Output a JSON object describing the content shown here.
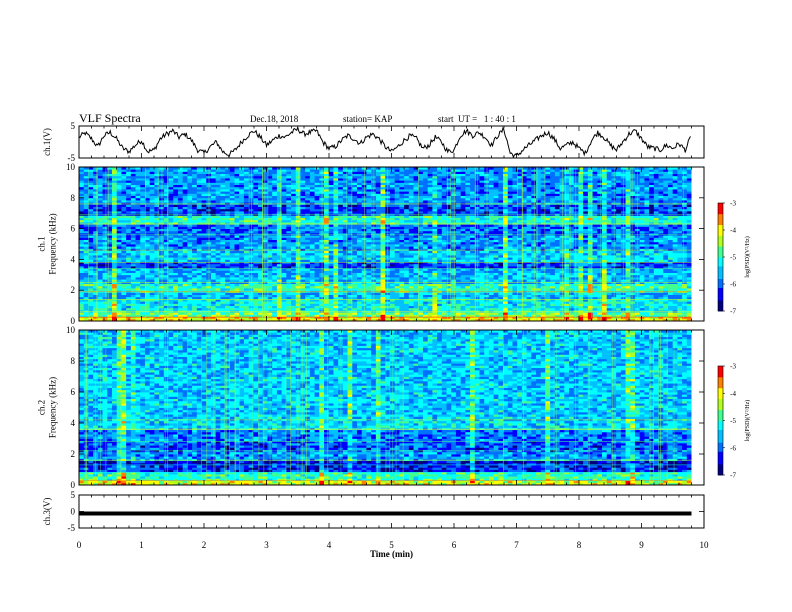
{
  "header": {
    "title": "VLF Spectra",
    "date": "Dec.18, 2018",
    "station": "station= KAP",
    "start": "start  UT =   1 : 40 : 1"
  },
  "chart_data": [
    {
      "type": "line",
      "panel": "ch1-waveform",
      "ylabel": "ch.1(V)",
      "ylim": [
        -5,
        5
      ],
      "yticks": [
        "5",
        "-5"
      ],
      "xlim": [
        0,
        10
      ],
      "samples_x_min": [
        0.0,
        0.1,
        0.2,
        0.3,
        0.4,
        0.5,
        0.6,
        0.7,
        0.8,
        0.9,
        1.0,
        1.1,
        1.2,
        1.3,
        1.4,
        1.5,
        1.6,
        1.7,
        1.8,
        1.9,
        2.0,
        2.1,
        2.2,
        2.3,
        2.4,
        2.5,
        2.6,
        2.7,
        2.8,
        2.9,
        3.0,
        3.1,
        3.2,
        3.3,
        3.4,
        3.5,
        3.6,
        3.7,
        3.8,
        3.9,
        4.0,
        4.1,
        4.2,
        4.3,
        4.4,
        4.5,
        4.6,
        4.7,
        4.8,
        4.9,
        5.0,
        5.1,
        5.2,
        5.3,
        5.4,
        5.5,
        5.6,
        5.7,
        5.8,
        5.9,
        6.0,
        6.1,
        6.2,
        6.3,
        6.4,
        6.5,
        6.6,
        6.7,
        6.8,
        6.9,
        7.0,
        7.1,
        7.2,
        7.3,
        7.4,
        7.5,
        7.6,
        7.7,
        7.8,
        7.9,
        8.0,
        8.1,
        8.2,
        8.3,
        8.4,
        8.5,
        8.6,
        8.7,
        8.8,
        8.9,
        9.0,
        9.1,
        9.2,
        9.3,
        9.4,
        9.5,
        9.6,
        9.7,
        9.8
      ],
      "values_v": [
        1.5,
        2.8,
        1.0,
        -1.5,
        2.0,
        3.0,
        1.0,
        -2.0,
        -3.0,
        -1.0,
        0.5,
        -3.0,
        -2.5,
        1.0,
        2.5,
        3.5,
        1.5,
        2.5,
        0.5,
        -2.5,
        -3.5,
        -1.5,
        0.0,
        -3.0,
        -4.0,
        -2.5,
        0.0,
        2.0,
        3.5,
        1.5,
        -1.0,
        0.5,
        2.0,
        1.5,
        3.0,
        4.0,
        2.5,
        3.0,
        3.5,
        0.0,
        -2.0,
        -1.5,
        0.5,
        2.0,
        1.0,
        -0.5,
        1.5,
        2.5,
        1.0,
        -1.5,
        -3.0,
        -1.5,
        0.5,
        2.0,
        1.0,
        -2.0,
        -1.0,
        1.5,
        0.0,
        -3.0,
        -2.5,
        2.0,
        3.5,
        2.0,
        3.0,
        1.5,
        -1.0,
        2.0,
        4.0,
        -3.5,
        -4.5,
        -2.5,
        -1.0,
        0.5,
        2.0,
        3.0,
        1.0,
        -2.0,
        -1.0,
        0.0,
        -2.0,
        -3.5,
        0.5,
        3.0,
        1.5,
        -1.0,
        -2.5,
        0.0,
        2.5,
        3.5,
        1.0,
        -1.5,
        -2.0,
        -2.5,
        -1.0,
        -2.0,
        -0.5,
        -2.5,
        2.0
      ]
    },
    {
      "type": "heatmap",
      "panel": "ch1-spectrogram",
      "ylabel": "ch.1\nFrequency (kHz)",
      "ylim": [
        0,
        10
      ],
      "yticks": [
        "0",
        "2",
        "4",
        "6",
        "8",
        "10"
      ],
      "xlim": [
        0,
        10
      ],
      "color_scale": {
        "label": "log(PSD)(V²/Hz)",
        "range": [
          -7,
          -3
        ],
        "ticks": [
          "-3",
          "-4",
          "-5",
          "-6",
          "-7"
        ]
      },
      "bands_khz_level": [
        {
          "from": 0.0,
          "to": 0.25,
          "level": -4.0
        },
        {
          "from": 0.25,
          "to": 0.6,
          "level": -4.6
        },
        {
          "from": 0.6,
          "to": 1.4,
          "level": -5.3
        },
        {
          "from": 1.4,
          "to": 1.9,
          "level": -5.6
        },
        {
          "from": 1.9,
          "to": 2.5,
          "level": -5.0
        },
        {
          "from": 2.5,
          "to": 3.4,
          "level": -5.6
        },
        {
          "from": 3.4,
          "to": 3.8,
          "level": -6.2
        },
        {
          "from": 3.8,
          "to": 4.6,
          "level": -5.5
        },
        {
          "from": 4.6,
          "to": 5.6,
          "level": -5.8
        },
        {
          "from": 5.6,
          "to": 6.3,
          "level": -6.0
        },
        {
          "from": 6.3,
          "to": 6.9,
          "level": -5.1
        },
        {
          "from": 6.9,
          "to": 7.6,
          "level": -6.2
        },
        {
          "from": 7.6,
          "to": 10.0,
          "level": -5.8
        }
      ]
    },
    {
      "type": "heatmap",
      "panel": "ch2-spectrogram",
      "ylabel": "ch.2\nFrequency (kHz)",
      "ylim": [
        0,
        10
      ],
      "yticks": [
        "0",
        "2",
        "4",
        "6",
        "8",
        "10"
      ],
      "xlim": [
        0,
        10
      ],
      "color_scale": {
        "label": "log(PSD)(V²/Hz)",
        "range": [
          -7,
          -3
        ],
        "ticks": [
          "-3",
          "-4",
          "-5",
          "-6",
          "-7"
        ]
      },
      "bands_khz_level": [
        {
          "from": 0.0,
          "to": 0.3,
          "level": -4.2
        },
        {
          "from": 0.3,
          "to": 0.8,
          "level": -5.0
        },
        {
          "from": 0.8,
          "to": 1.3,
          "level": -6.3
        },
        {
          "from": 1.3,
          "to": 1.6,
          "level": -6.5
        },
        {
          "from": 1.6,
          "to": 2.2,
          "level": -5.8
        },
        {
          "from": 2.2,
          "to": 2.8,
          "level": -6.1
        },
        {
          "from": 2.8,
          "to": 3.6,
          "level": -5.9
        },
        {
          "from": 3.6,
          "to": 4.2,
          "level": -5.4
        },
        {
          "from": 4.2,
          "to": 10.0,
          "level": -5.5
        }
      ]
    },
    {
      "type": "line",
      "panel": "ch3-waveform",
      "ylabel": "ch.3(V)",
      "ylim": [
        -5,
        5
      ],
      "yticks": [
        "5",
        "0",
        "-5"
      ],
      "xlim": [
        0,
        10
      ],
      "x": [
        0,
        9.8
      ],
      "values_v": [
        0,
        0
      ]
    },
    {
      "type": "axis",
      "xlabel": "Time (min)",
      "xticks": [
        "0",
        "1",
        "2",
        "3",
        "4",
        "5",
        "6",
        "7",
        "8",
        "9",
        "10"
      ]
    }
  ],
  "colors": {
    "waveform": "#000000",
    "colormap": [
      "#000080",
      "#0000ff",
      "#00a0ff",
      "#00ffff",
      "#40ff80",
      "#c0ff00",
      "#ffff00",
      "#ff8000",
      "#ff0000",
      "#ffffff"
    ]
  }
}
